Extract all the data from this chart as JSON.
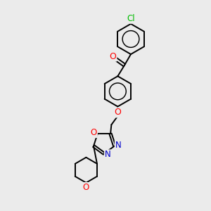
{
  "background_color": "#ebebeb",
  "atom_colors": {
    "C": "#000000",
    "O": "#ff0000",
    "N": "#0000cc",
    "Cl": "#00bb00"
  },
  "bond_width": 1.4,
  "figsize": [
    3.0,
    3.0
  ],
  "dpi": 100
}
